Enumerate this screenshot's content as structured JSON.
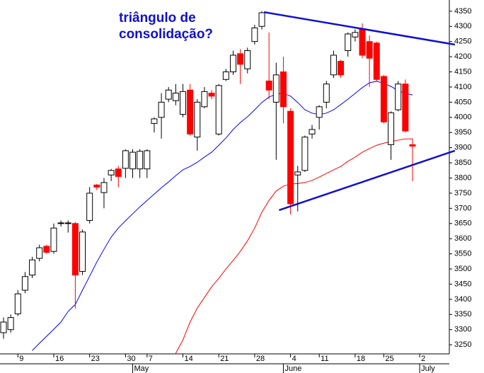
{
  "chart_data": {
    "type": "candlestick",
    "annotation": [
      "triângulo de",
      "consolidação?"
    ],
    "categories": [
      null,
      null,
      "9",
      null,
      null,
      null,
      null,
      "16",
      null,
      null,
      null,
      null,
      "23",
      null,
      null,
      null,
      null,
      "30",
      null,
      null,
      "7",
      null,
      null,
      null,
      null,
      "14",
      null,
      null,
      null,
      null,
      "21",
      null,
      null,
      null,
      null,
      "28",
      null,
      null,
      null,
      null,
      "4",
      null,
      null,
      null,
      "11",
      null,
      null,
      null,
      null,
      "18",
      null,
      null,
      null,
      "25",
      null,
      null,
      null,
      null,
      "2",
      null,
      null,
      null,
      null
    ],
    "months": [
      null,
      null,
      null,
      null,
      null,
      null,
      null,
      null,
      null,
      null,
      null,
      null,
      null,
      null,
      null,
      null,
      null,
      null,
      "May",
      null,
      null,
      null,
      null,
      null,
      null,
      null,
      null,
      null,
      null,
      null,
      null,
      null,
      null,
      null,
      null,
      null,
      null,
      null,
      null,
      "June",
      null,
      null,
      null,
      null,
      null,
      null,
      null,
      null,
      null,
      null,
      null,
      null,
      null,
      null,
      null,
      null,
      null,
      null,
      "July",
      null,
      null,
      null,
      null
    ],
    "open": [
      3290,
      3300,
      3352,
      3430,
      3480,
      3535,
      3575,
      3558,
      3650,
      3650,
      3650,
      3492,
      3660,
      3777,
      3752,
      3810,
      3830,
      3832,
      3830,
      3830,
      3830,
      3980,
      4000,
      4060,
      4055,
      4010,
      4090,
      3935,
      4035,
      4080,
      3945,
      4125,
      4150,
      4210,
      4160,
      4250,
      4300,
      4120,
      4050,
      4150,
      4020,
      3810,
      3825,
      3945,
      4000,
      4050,
      4140,
      4185,
      4220,
      4265,
      4290,
      4250,
      4245,
      4135,
      3910,
      4025,
      4110,
      3910,
      null,
      null,
      null,
      null,
      null
    ],
    "high": [
      3340,
      3350,
      3430,
      3490,
      3540,
      3580,
      3580,
      3650,
      3660,
      3660,
      3655,
      3630,
      3770,
      3780,
      3800,
      3830,
      3840,
      3895,
      3895,
      3895,
      3895,
      4000,
      4080,
      4100,
      4110,
      4110,
      4110,
      4060,
      4100,
      4090,
      4110,
      4160,
      4220,
      4225,
      4230,
      4305,
      4350,
      4280,
      4180,
      4200,
      4030,
      3840,
      3940,
      3975,
      4040,
      4120,
      4220,
      4190,
      4280,
      4290,
      4310,
      4270,
      4250,
      4140,
      4020,
      4120,
      4125,
      3930,
      null,
      null,
      null,
      null,
      null
    ],
    "low": [
      3270,
      3290,
      3345,
      3420,
      3470,
      3525,
      3550,
      3550,
      3640,
      3620,
      3370,
      3480,
      3650,
      3760,
      3700,
      3790,
      3770,
      3800,
      3800,
      3800,
      3800,
      3950,
      3930,
      4050,
      4040,
      4000,
      3940,
      3890,
      4030,
      4060,
      3940,
      4120,
      4140,
      4110,
      4145,
      4240,
      4290,
      4060,
      3860,
      3980,
      3680,
      3690,
      3820,
      3930,
      3960,
      4030,
      4130,
      4130,
      4200,
      4250,
      4195,
      4100,
      4120,
      3980,
      3860,
      4020,
      3950,
      3790,
      null,
      null,
      null,
      null,
      null
    ],
    "close": [
      3325,
      3340,
      3418,
      3475,
      3530,
      3570,
      3555,
      3635,
      3652,
      3652,
      3480,
      3622,
      3750,
      3770,
      3785,
      3825,
      3805,
      3890,
      3885,
      3888,
      3890,
      3995,
      4050,
      4090,
      4080,
      4085,
      3945,
      4050,
      4085,
      4070,
      4105,
      4150,
      4205,
      4175,
      4220,
      4295,
      4345,
      4090,
      4140,
      4035,
      3715,
      3820,
      3935,
      3960,
      4035,
      4110,
      4205,
      4140,
      4275,
      4280,
      4205,
      4195,
      4125,
      3985,
      4015,
      4110,
      3955,
      3905,
      null,
      null,
      null,
      null,
      null
    ],
    "up_color": "#ffffff",
    "down_color": "#ff0000",
    "series": [
      {
        "color": "#0000ff",
        "values": [
          null,
          null,
          null,
          null,
          3231,
          3255,
          3278,
          3301,
          3325,
          3360,
          3383,
          3430,
          3476,
          3523,
          3565,
          3605,
          3635,
          3659,
          3682,
          3705,
          3726,
          3747,
          3768,
          3787,
          3808,
          3827,
          3838,
          3852,
          3869,
          3885,
          3908,
          3932,
          3960,
          3983,
          4002,
          4025,
          4049,
          4067,
          4077,
          4079,
          4070,
          4049,
          4025,
          4014,
          4009,
          4014,
          4025,
          4042,
          4060,
          4079,
          4098,
          4114,
          4119,
          4112,
          4102,
          4088,
          4079,
          4074,
          null,
          null,
          null,
          null,
          null
        ]
      },
      {
        "color": "#ff0000",
        "values": [
          null,
          null,
          null,
          null,
          null,
          null,
          null,
          null,
          null,
          null,
          null,
          null,
          null,
          null,
          null,
          null,
          null,
          null,
          null,
          null,
          null,
          null,
          null,
          null,
          3222,
          3266,
          3325,
          3371,
          3406,
          3441,
          3469,
          3500,
          3528,
          3558,
          3593,
          3635,
          3687,
          3726,
          3757,
          3773,
          3780,
          3782,
          3785,
          3792,
          3803,
          3815,
          3827,
          3838,
          3855,
          3869,
          3885,
          3897,
          3908,
          3915,
          3920,
          3925,
          3929,
          3929,
          null,
          null,
          null,
          null,
          null
        ]
      }
    ],
    "trendlines": [
      {
        "color": "#1010d0",
        "x": [
          36.3,
          62.9
        ],
        "values": [
          4347,
          4240
        ]
      },
      {
        "color": "#1010d0",
        "x": [
          38.4,
          62.9
        ],
        "values": [
          3694,
          3890
        ]
      }
    ],
    "ylim": [
      3220,
      4387
    ],
    "yticks": [
      3250,
      3300,
      3350,
      3400,
      3450,
      3500,
      3550,
      3600,
      3650,
      3700,
      3750,
      3800,
      3850,
      3900,
      3950,
      4000,
      4050,
      4100,
      4150,
      4200,
      4250,
      4300,
      4350
    ]
  }
}
